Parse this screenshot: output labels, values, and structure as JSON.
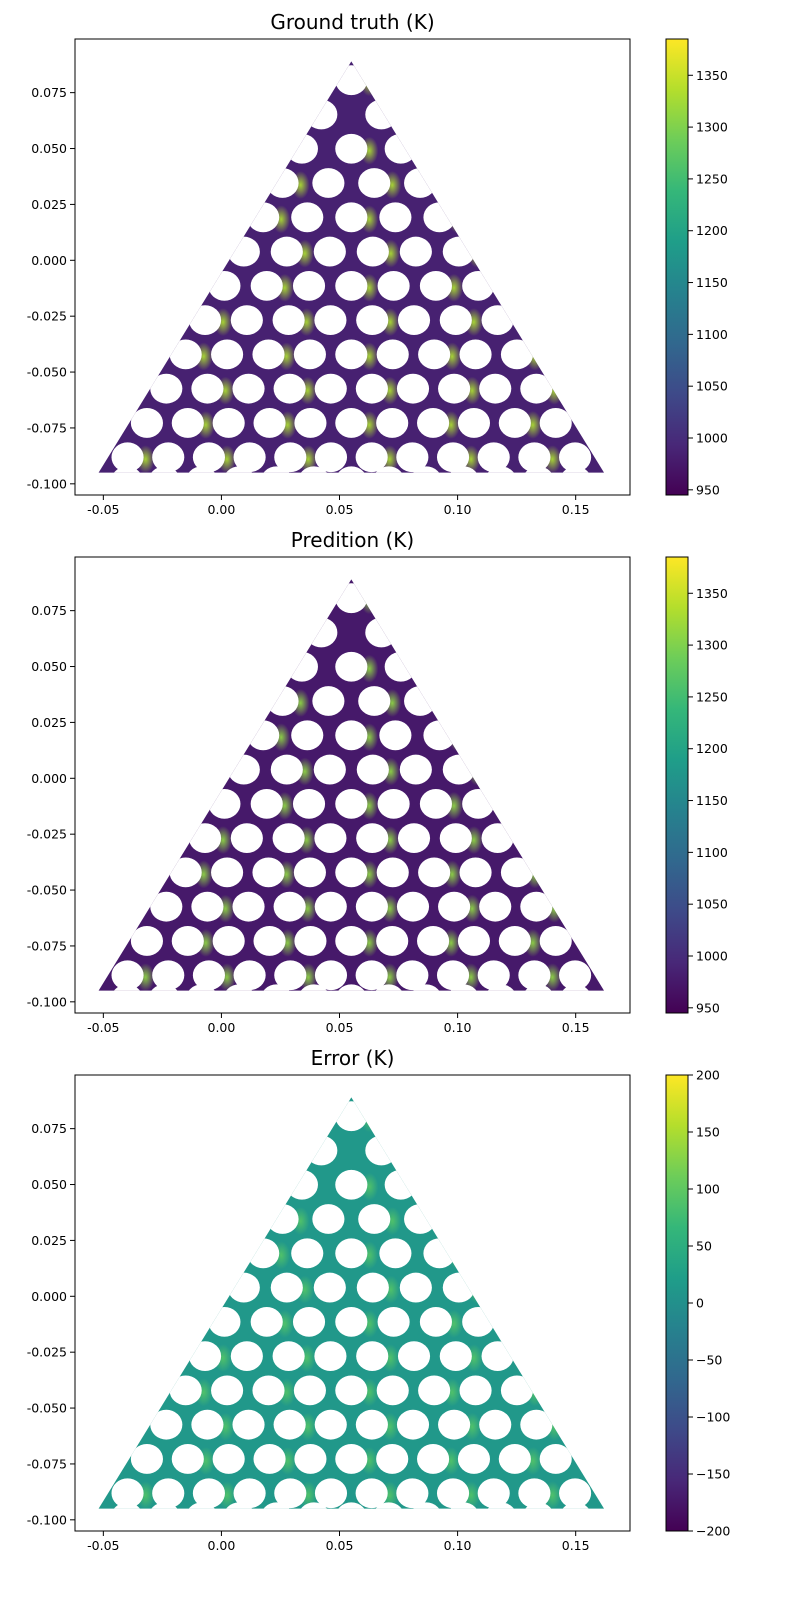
{
  "chart_data": [
    {
      "type": "heatmap",
      "title": "Ground truth (K)",
      "xlim": [
        -0.062,
        0.173
      ],
      "ylim": [
        -0.105,
        0.099
      ],
      "x_ticks": [
        "-0.05",
        "0.00",
        "0.05",
        "0.10",
        "0.15"
      ],
      "y_ticks": [
        "0.075",
        "0.050",
        "0.025",
        "0.000",
        "-0.025",
        "-0.050",
        "-0.075",
        "-0.100"
      ],
      "colormap": "viridis",
      "colorbar": {
        "min": 945,
        "max": 1385,
        "ticks": [
          "1350",
          "1300",
          "1250",
          "1200",
          "1150",
          "1100",
          "1050",
          "1000",
          "950"
        ]
      },
      "field": {
        "background_value": 985,
        "hotspot_value": 1330
      }
    },
    {
      "type": "heatmap",
      "title": "Predition (K)",
      "xlim": [
        -0.062,
        0.173
      ],
      "ylim": [
        -0.105,
        0.099
      ],
      "x_ticks": [
        "-0.05",
        "0.00",
        "0.05",
        "0.10",
        "0.15"
      ],
      "y_ticks": [
        "0.075",
        "0.050",
        "0.025",
        "0.000",
        "-0.025",
        "-0.050",
        "-0.075",
        "-0.100"
      ],
      "colormap": "viridis",
      "colorbar": {
        "min": 945,
        "max": 1385,
        "ticks": [
          "1350",
          "1300",
          "1250",
          "1200",
          "1150",
          "1100",
          "1050",
          "1000",
          "950"
        ]
      },
      "field": {
        "background_value": 975,
        "hotspot_value": 1310
      }
    },
    {
      "type": "heatmap",
      "title": "Error (K)",
      "xlim": [
        -0.062,
        0.173
      ],
      "ylim": [
        -0.105,
        0.099
      ],
      "x_ticks": [
        "-0.05",
        "0.00",
        "0.05",
        "0.10",
        "0.15"
      ],
      "y_ticks": [
        "0.075",
        "0.050",
        "0.025",
        "0.000",
        "-0.025",
        "-0.050",
        "-0.075",
        "-0.100"
      ],
      "colormap": "viridis",
      "colorbar": {
        "min": -200,
        "max": 200,
        "ticks": [
          "200",
          "150",
          "100",
          "50",
          "0",
          "−50",
          "−100",
          "−150",
          "−200"
        ]
      },
      "field": {
        "background_value": 12,
        "hotspot_value": 90
      }
    }
  ],
  "domain": {
    "apex": [
      0.055,
      0.089
    ],
    "base_y": -0.095,
    "base_x": [
      -0.052,
      0.162
    ],
    "hole_radius": 0.0068,
    "hole_rows": 12
  }
}
